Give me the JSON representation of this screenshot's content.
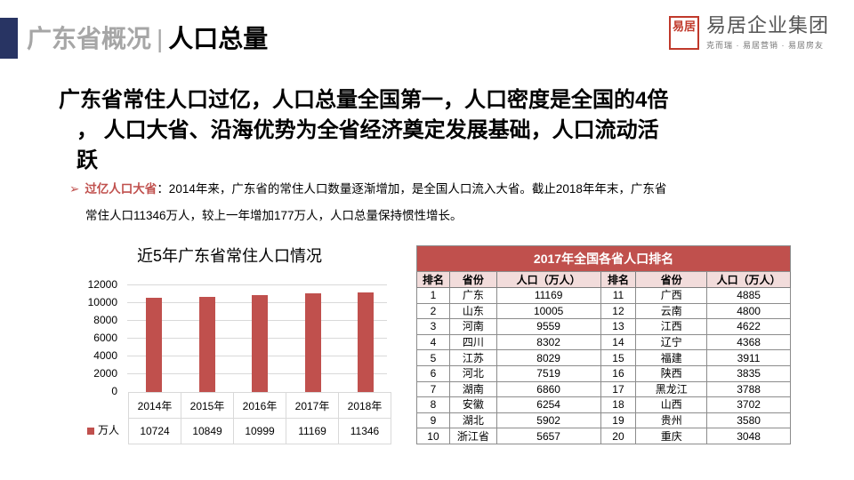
{
  "header": {
    "section": "广东省概况",
    "separator": "|",
    "topic": "人口总量"
  },
  "logo": {
    "seal": "易居",
    "name": "易居企业集团",
    "subtitle": "克而瑞 · 易居营销 · 易居房友"
  },
  "headline": {
    "line1": "广东省常住人口过亿，人口总量全国第一，人口密度是全国的4倍",
    "line2": "， 人口大省、沿海优势为全省经济奠定发展基础，人口流动活",
    "line3": "跃"
  },
  "bullet": {
    "arrow": "➢",
    "key": "过亿人口大省",
    "text1": "：2014年来，广东省的常住人口数量逐渐增加，是全国人口流入大省。截止2018年年末，广东省",
    "text2": "常住人口11346万人，较上一年增加177万人，人口总量保持惯性增长。"
  },
  "chart_data": {
    "type": "bar",
    "title": "近5年广东省常住人口情况",
    "categories": [
      "2014年",
      "2015年",
      "2016年",
      "2017年",
      "2018年"
    ],
    "series": [
      {
        "name": "万人",
        "values": [
          10724,
          10849,
          10999,
          11169,
          11346
        ],
        "color": "#c0504d"
      }
    ],
    "xlabel": "",
    "ylabel": "",
    "ylim": [
      0,
      12000
    ],
    "yticks": [
      "12000",
      "10000",
      "8000",
      "6000",
      "4000",
      "2000",
      "0"
    ],
    "grid": true,
    "legend_position": "data-table",
    "data_table": true
  },
  "chart_view": {
    "tick_labels": [
      "12000",
      "10000",
      "8000",
      "6000",
      "4000",
      "2000",
      "0"
    ],
    "years": [
      "2014年",
      "2015年",
      "2016年",
      "2017年",
      "2018年"
    ],
    "values": [
      "10724",
      "10849",
      "10999",
      "11169",
      "11346"
    ],
    "legend": "万人"
  },
  "rank_table": {
    "caption": "2017年全国各省人口排名",
    "headers": [
      "排名",
      "省份",
      "人口（万人）",
      "排名",
      "省份",
      "人口（万人）"
    ],
    "rows": [
      [
        "1",
        "广东",
        "11169",
        "11",
        "广西",
        "4885"
      ],
      [
        "2",
        "山东",
        "10005",
        "12",
        "云南",
        "4800"
      ],
      [
        "3",
        "河南",
        "9559",
        "13",
        "江西",
        "4622"
      ],
      [
        "4",
        "四川",
        "8302",
        "14",
        "辽宁",
        "4368"
      ],
      [
        "5",
        "江苏",
        "8029",
        "15",
        "福建",
        "3911"
      ],
      [
        "6",
        "河北",
        "7519",
        "16",
        "陕西",
        "3835"
      ],
      [
        "7",
        "湖南",
        "6860",
        "17",
        "黑龙江",
        "3788"
      ],
      [
        "8",
        "安徽",
        "6254",
        "18",
        "山西",
        "3702"
      ],
      [
        "9",
        "湖北",
        "5902",
        "19",
        "贵州",
        "3580"
      ],
      [
        "10",
        "浙江省",
        "5657",
        "20",
        "重庆",
        "3048"
      ]
    ]
  },
  "colors": {
    "accent_navy": "#283463",
    "bar_red": "#c0504d",
    "header_pink": "#f2dcdb",
    "title_gray": "#a6a6a6"
  }
}
